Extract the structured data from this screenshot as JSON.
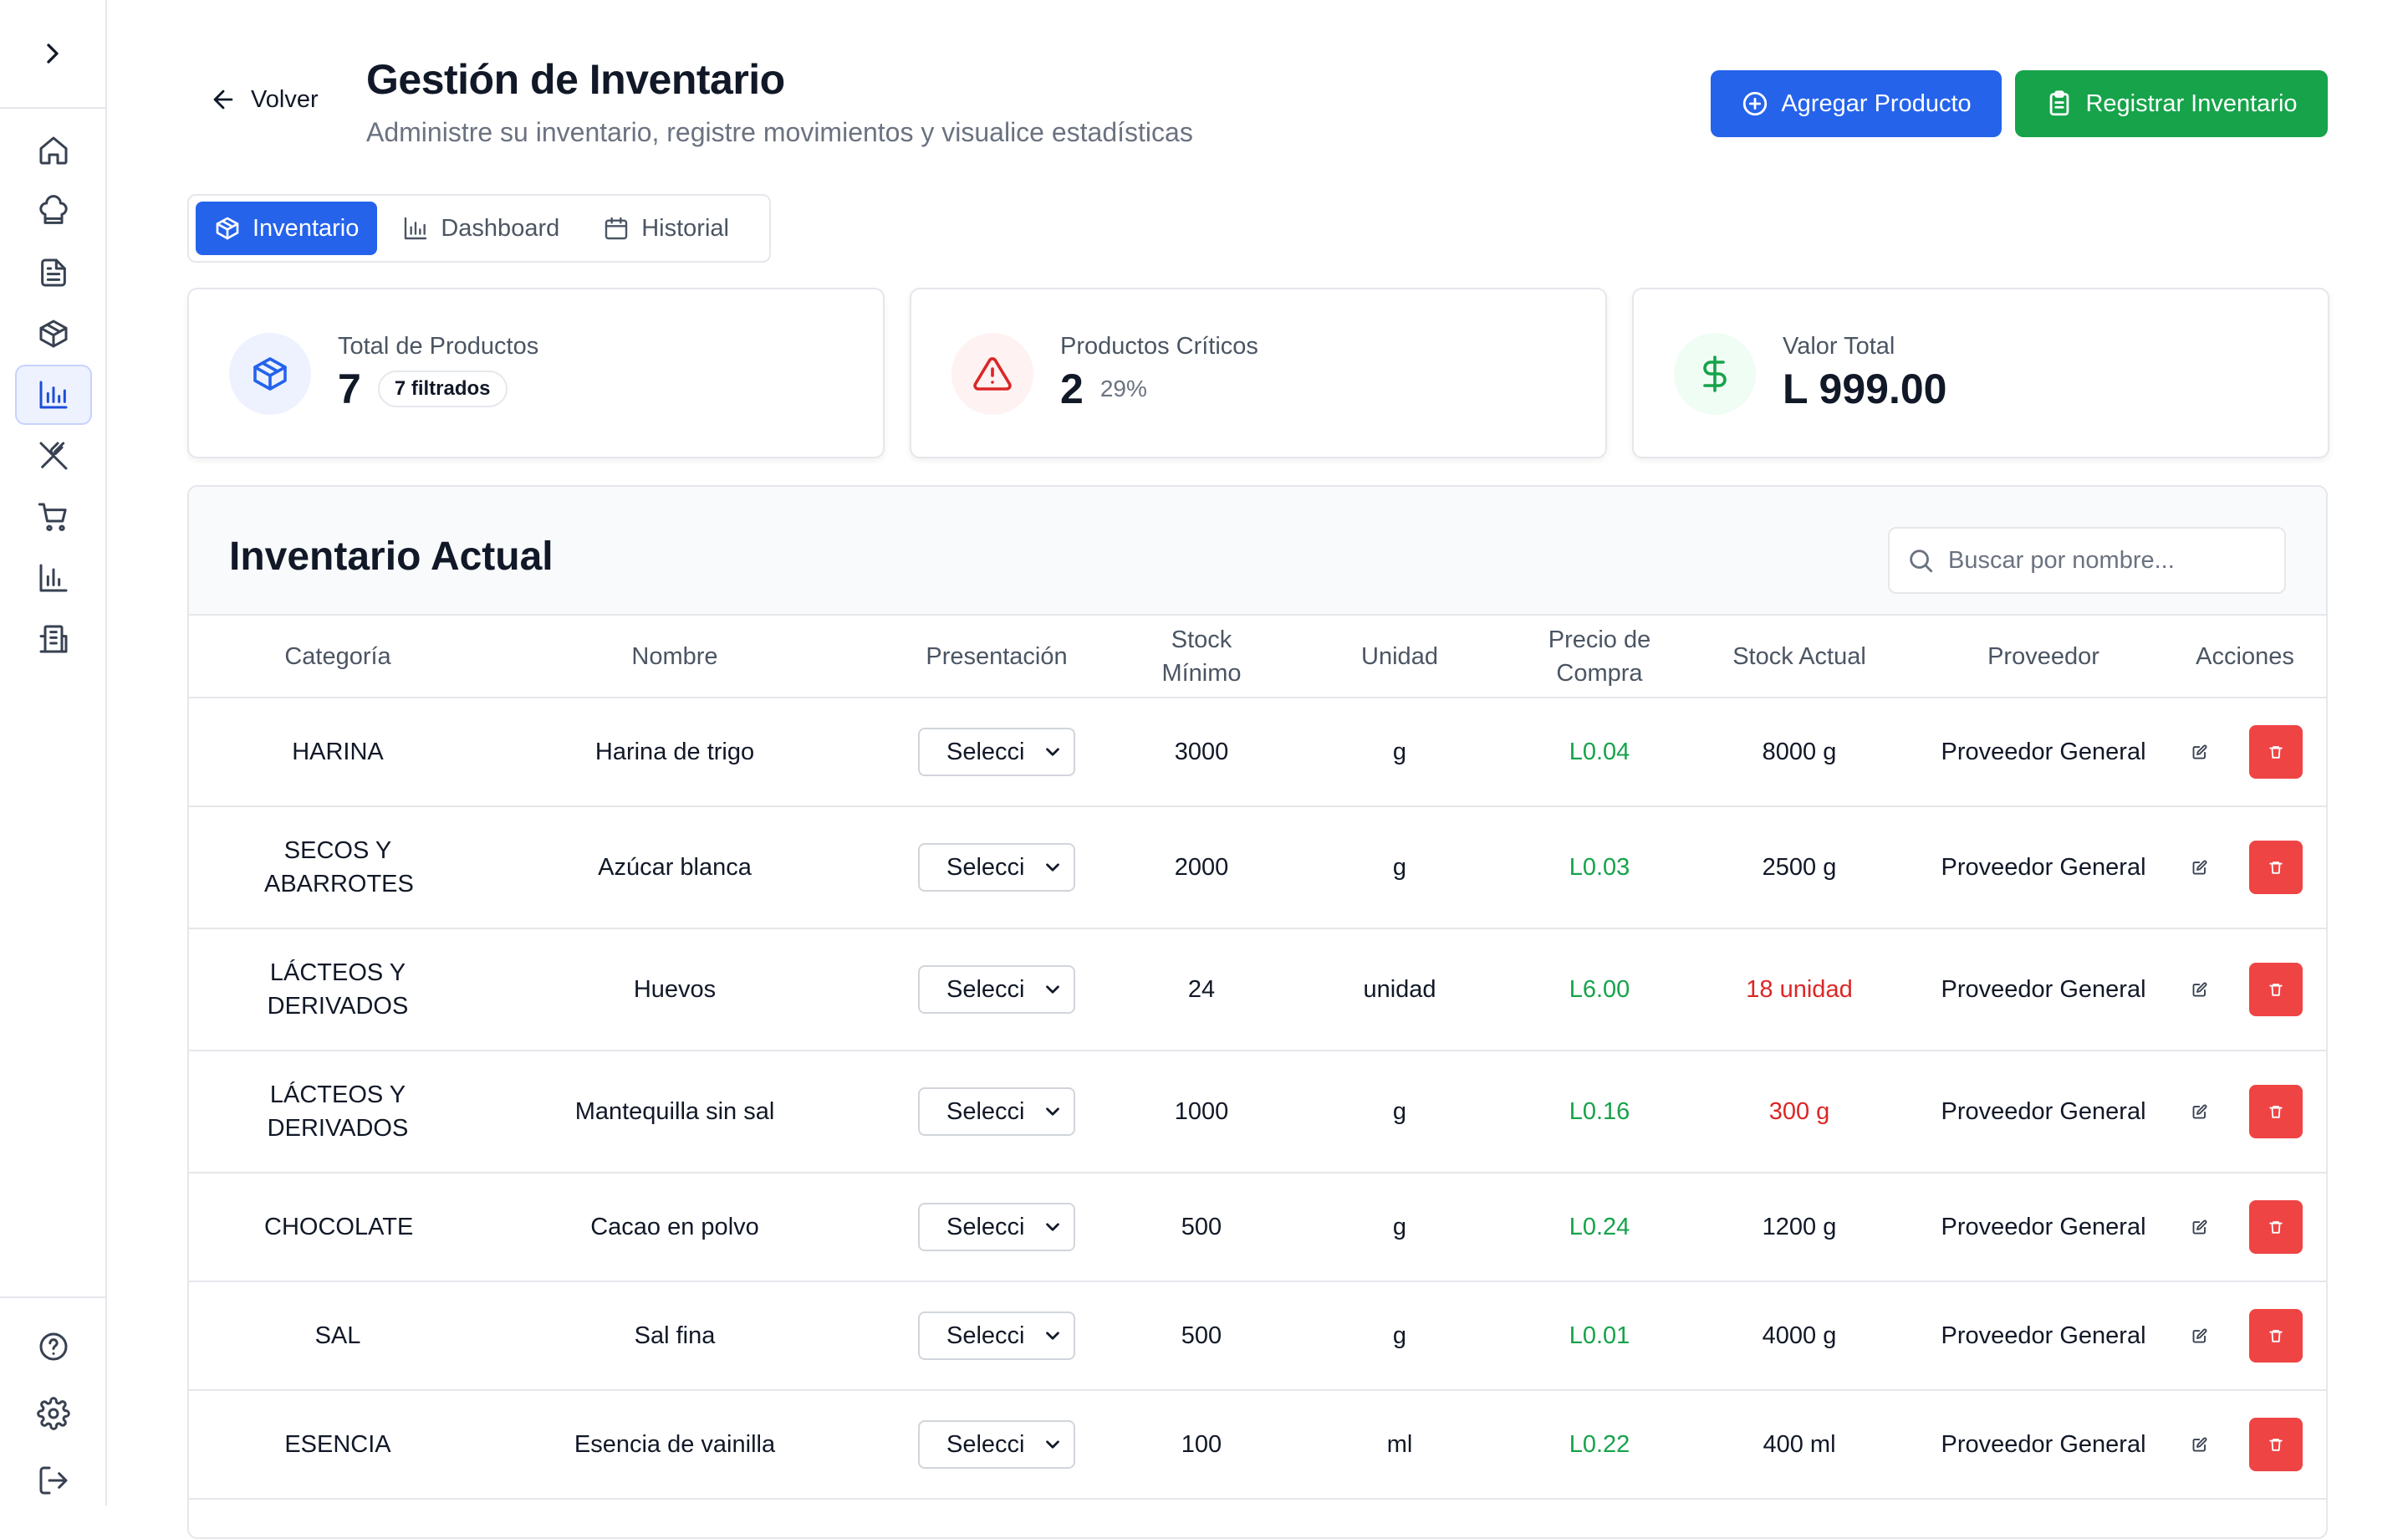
{
  "header": {
    "back_label": "Volver",
    "title": "Gestión de Inventario",
    "subtitle": "Administre su inventario, registre movimientos y visualice estadísticas",
    "add_product_label": "Agregar Producto",
    "register_inventory_label": "Registrar Inventario"
  },
  "tabs": [
    {
      "label": "Inventario",
      "icon": "package-icon",
      "active": true
    },
    {
      "label": "Dashboard",
      "icon": "bar-chart-icon",
      "active": false
    },
    {
      "label": "Historial",
      "icon": "calendar-icon",
      "active": false
    }
  ],
  "stats": {
    "total_products": {
      "label": "Total de Productos",
      "value": "7",
      "badge": "7 filtrados",
      "icon": "package-icon"
    },
    "critical_products": {
      "label": "Productos Críticos",
      "value": "2",
      "percent": "29%",
      "icon": "alert-triangle-icon"
    },
    "total_value": {
      "label": "Valor Total",
      "value": "L 999.00",
      "icon": "dollar-icon"
    }
  },
  "inventory": {
    "title": "Inventario Actual",
    "search_placeholder": "Buscar por nombre...",
    "columns": [
      "Categoría",
      "Nombre",
      "Presentación",
      "Stock Mínimo",
      "Unidad",
      "Precio de Compra",
      "Stock Actual",
      "Proveedor",
      "Acciones"
    ],
    "rows": [
      {
        "category": "HARINA",
        "name": "Harina de trigo",
        "presentation": "Selecci",
        "min_stock": "3000",
        "unit": "g",
        "price": "L0.04",
        "stock": "8000 g",
        "critical": false,
        "supplier": "Proveedor General"
      },
      {
        "category": "SECOS Y ABARROTES",
        "name": "Azúcar blanca",
        "presentation": "Selecci",
        "min_stock": "2000",
        "unit": "g",
        "price": "L0.03",
        "stock": "2500 g",
        "critical": false,
        "supplier": "Proveedor General"
      },
      {
        "category": "LÁCTEOS Y DERIVADOS",
        "name": "Huevos",
        "presentation": "Selecci",
        "min_stock": "24",
        "unit": "unidad",
        "price": "L6.00",
        "stock": "18 unidad",
        "critical": true,
        "supplier": "Proveedor General"
      },
      {
        "category": "LÁCTEOS Y DERIVADOS",
        "name": "Mantequilla sin sal",
        "presentation": "Selecci",
        "min_stock": "1000",
        "unit": "g",
        "price": "L0.16",
        "stock": "300 g",
        "critical": true,
        "supplier": "Proveedor General"
      },
      {
        "category": "CHOCOLATE",
        "name": "Cacao en polvo",
        "presentation": "Selecci",
        "min_stock": "500",
        "unit": "g",
        "price": "L0.24",
        "stock": "1200 g",
        "critical": false,
        "supplier": "Proveedor General"
      },
      {
        "category": "SAL",
        "name": "Sal fina",
        "presentation": "Selecci",
        "min_stock": "500",
        "unit": "g",
        "price": "L0.01",
        "stock": "4000 g",
        "critical": false,
        "supplier": "Proveedor General"
      },
      {
        "category": "ESENCIA",
        "name": "Esencia de vainilla",
        "presentation": "Selecci",
        "min_stock": "100",
        "unit": "ml",
        "price": "L0.22",
        "stock": "400 ml",
        "critical": false,
        "supplier": "Proveedor General"
      }
    ]
  },
  "colors": {
    "primary": "#2563eb",
    "success": "#16a34a",
    "danger": "#ef4444",
    "critical_text": "#dc2626"
  }
}
